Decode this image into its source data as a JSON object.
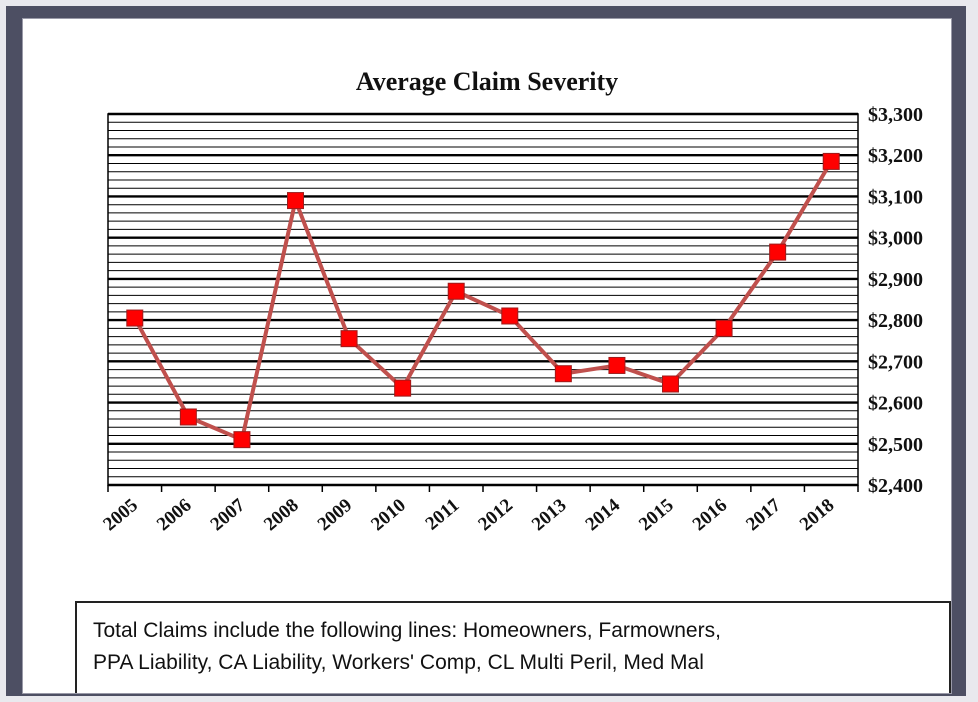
{
  "chart_data": {
    "type": "line",
    "title": "Average Claim Severity",
    "categories": [
      "2005",
      "2006",
      "2007",
      "2008",
      "2009",
      "2010",
      "2011",
      "2012",
      "2013",
      "2014",
      "2015",
      "2016",
      "2017",
      "2018"
    ],
    "series": [
      {
        "values": [
          2805,
          2565,
          2510,
          3090,
          2755,
          2635,
          2870,
          2810,
          2670,
          2690,
          2645,
          2780,
          2965,
          3185
        ]
      }
    ],
    "ylim": [
      2400,
      3300
    ],
    "y_ticks": [
      2400,
      2500,
      2600,
      2700,
      2800,
      2900,
      3000,
      3100,
      3200,
      3300
    ],
    "y_tick_labels": [
      "$2,400",
      "$2,500",
      "$2,600",
      "$2,700",
      "$2,800",
      "$2,900",
      "$3,000",
      "$3,100",
      "$3,200",
      "$3,300"
    ],
    "y_axis_side": "right",
    "grid": true,
    "line_color": "#c0504d",
    "marker_color": "#ff0000",
    "marker": "square"
  },
  "note": {
    "lines": [
      "Total Claims include the following lines: Homeowners, Farmowners,",
      "PPA Liability, CA Liability, Workers' Comp, CL Multi Peril, Med Mal"
    ]
  }
}
